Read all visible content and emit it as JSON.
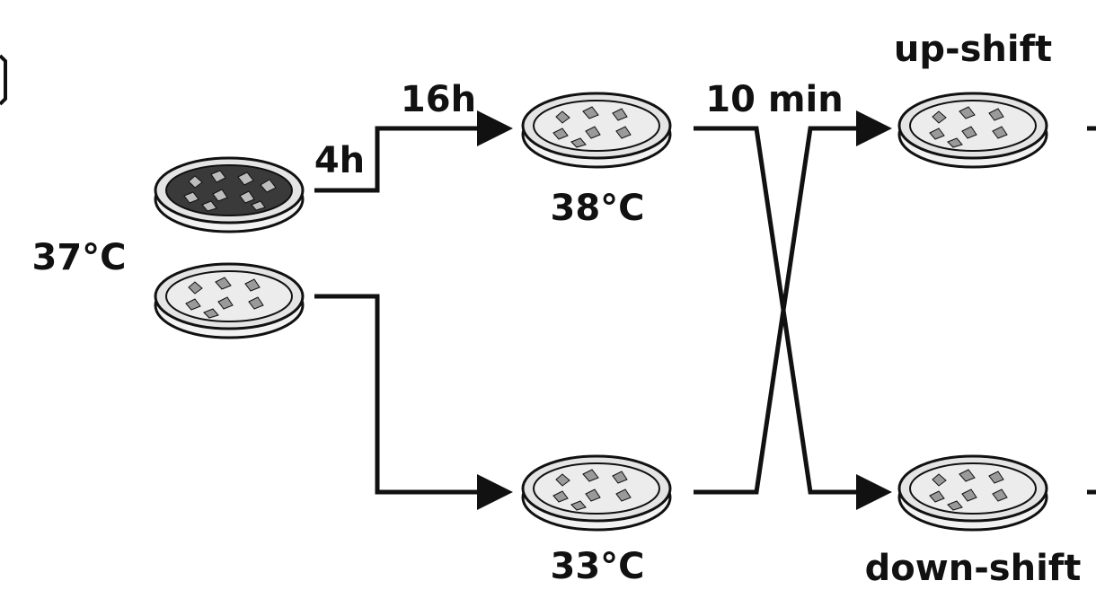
{
  "labels": {
    "start_temp": "37°C",
    "time_4h": "4h",
    "time_16h": "16h",
    "temp_38": "38°C",
    "temp_33": "33°C",
    "time_10min": "10 min",
    "up_shift": "up-shift",
    "down_shift": "down-shift"
  },
  "colors": {
    "ink": "#111111",
    "dense_culture": "#3a3a3a",
    "sparse_culture": "#9a9a9a",
    "background": "#ffffff"
  }
}
